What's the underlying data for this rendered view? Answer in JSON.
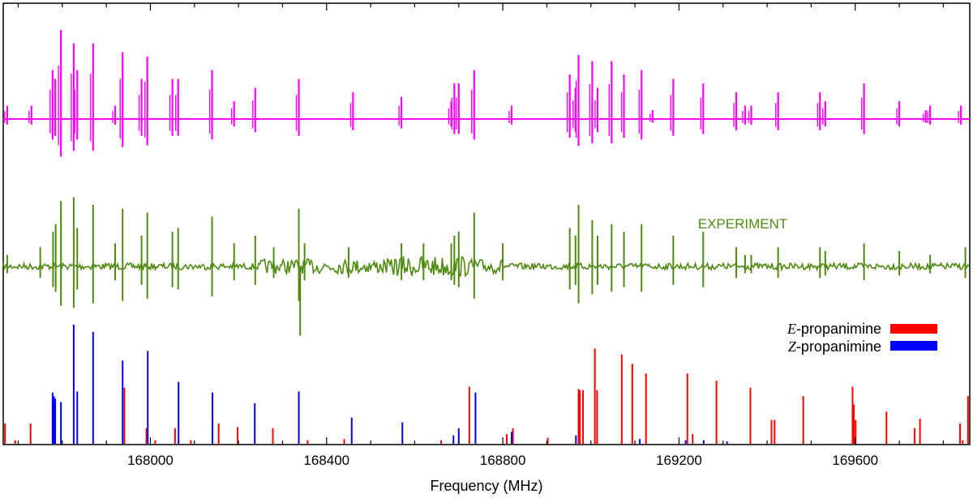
{
  "chart_data": {
    "type": "line",
    "xlabel": "Frequency (MHz)",
    "xlim": [
      167666,
      169860
    ],
    "xticks": [
      168000,
      168400,
      168800,
      169200,
      169600
    ],
    "xtick_labels": [
      "168000",
      "168400",
      "168800",
      "169200",
      "169600"
    ],
    "grid": false,
    "annotations": [
      {
        "text": "EXPERIMENT",
        "color": "#4f8a10"
      }
    ],
    "legend": {
      "placement": "lower-right",
      "entries": [
        {
          "italic": "E",
          "text": "-propanimine",
          "color": "#ff0000"
        },
        {
          "italic": "Z",
          "text": "-propanimine",
          "color": "#0000ff"
        }
      ]
    },
    "series": [
      {
        "role": "simulated-spectrum",
        "color": "#ff00ff",
        "lines": [
          {
            "x": 167675,
            "a": 0.15
          },
          {
            "x": 167730,
            "a": 0.15
          },
          {
            "x": 167778,
            "a": 0.55
          },
          {
            "x": 167784,
            "a": 0.45
          },
          {
            "x": 167797,
            "a": 1.0
          },
          {
            "x": 167826,
            "a": 0.85
          },
          {
            "x": 167834,
            "a": 0.55
          },
          {
            "x": 167870,
            "a": 0.85
          },
          {
            "x": 167920,
            "a": 0.15
          },
          {
            "x": 167937,
            "a": 0.75
          },
          {
            "x": 167980,
            "a": 0.45
          },
          {
            "x": 167993,
            "a": 0.7
          },
          {
            "x": 168050,
            "a": 0.45
          },
          {
            "x": 168063,
            "a": 0.45
          },
          {
            "x": 168140,
            "a": 0.55
          },
          {
            "x": 168190,
            "a": 0.2
          },
          {
            "x": 168238,
            "a": 0.35
          },
          {
            "x": 168337,
            "a": 0.45
          },
          {
            "x": 168460,
            "a": 0.3
          },
          {
            "x": 168570,
            "a": 0.25
          },
          {
            "x": 168683,
            "a": 0.2
          },
          {
            "x": 168690,
            "a": 0.4
          },
          {
            "x": 168700,
            "a": 0.4
          },
          {
            "x": 168735,
            "a": 0.55
          },
          {
            "x": 168820,
            "a": 0.15
          },
          {
            "x": 168952,
            "a": 0.5
          },
          {
            "x": 168965,
            "a": 0.35
          },
          {
            "x": 168972,
            "a": 0.72
          },
          {
            "x": 169003,
            "a": 0.65
          },
          {
            "x": 169015,
            "a": 0.35
          },
          {
            "x": 169047,
            "a": 0.65
          },
          {
            "x": 169075,
            "a": 0.5
          },
          {
            "x": 169115,
            "a": 0.55
          },
          {
            "x": 169140,
            "a": 0.1
          },
          {
            "x": 169187,
            "a": 0.45
          },
          {
            "x": 169255,
            "a": 0.4
          },
          {
            "x": 169330,
            "a": 0.3
          },
          {
            "x": 169350,
            "a": 0.15
          },
          {
            "x": 169364,
            "a": 0.15
          },
          {
            "x": 169425,
            "a": 0.3
          },
          {
            "x": 169520,
            "a": 0.3
          },
          {
            "x": 169532,
            "a": 0.2
          },
          {
            "x": 169620,
            "a": 0.4
          },
          {
            "x": 169700,
            "a": 0.2
          },
          {
            "x": 169760,
            "a": 0.1
          },
          {
            "x": 169770,
            "a": 0.15
          },
          {
            "x": 169840,
            "a": 0.15
          }
        ]
      },
      {
        "role": "experiment",
        "color": "#4f8a10",
        "lines": [
          {
            "x": 167675,
            "a": 0.15
          },
          {
            "x": 167750,
            "a": 0.25
          },
          {
            "x": 167779,
            "a": 0.45
          },
          {
            "x": 167785,
            "a": 0.55
          },
          {
            "x": 167797,
            "a": 0.85
          },
          {
            "x": 167826,
            "a": 0.9
          },
          {
            "x": 167834,
            "a": 0.5
          },
          {
            "x": 167870,
            "a": 0.8
          },
          {
            "x": 167920,
            "a": 0.3
          },
          {
            "x": 167937,
            "a": 0.75
          },
          {
            "x": 167980,
            "a": 0.4
          },
          {
            "x": 167993,
            "a": 0.7
          },
          {
            "x": 168050,
            "a": 0.45
          },
          {
            "x": 168063,
            "a": 0.5
          },
          {
            "x": 168140,
            "a": 0.65
          },
          {
            "x": 168190,
            "a": 0.3
          },
          {
            "x": 168238,
            "a": 0.4
          },
          {
            "x": 168280,
            "a": 0.25
          },
          {
            "x": 168337,
            "a": 0.75
          },
          {
            "x": 168350,
            "a": 0.3
          },
          {
            "x": 168450,
            "a": 0.25
          },
          {
            "x": 168570,
            "a": 0.3
          },
          {
            "x": 168620,
            "a": 0.3
          },
          {
            "x": 168683,
            "a": 0.3
          },
          {
            "x": 168690,
            "a": 0.4
          },
          {
            "x": 168700,
            "a": 0.45
          },
          {
            "x": 168735,
            "a": 0.7
          },
          {
            "x": 168800,
            "a": 0.3
          },
          {
            "x": 168952,
            "a": 0.5
          },
          {
            "x": 168965,
            "a": 0.4
          },
          {
            "x": 168972,
            "a": 0.8
          },
          {
            "x": 169003,
            "a": 0.6
          },
          {
            "x": 169015,
            "a": 0.4
          },
          {
            "x": 169047,
            "a": 0.55
          },
          {
            "x": 169075,
            "a": 0.45
          },
          {
            "x": 169115,
            "a": 0.55
          },
          {
            "x": 169187,
            "a": 0.4
          },
          {
            "x": 169255,
            "a": 0.45
          },
          {
            "x": 169330,
            "a": 0.25
          },
          {
            "x": 169350,
            "a": 0.15
          },
          {
            "x": 169364,
            "a": 0.15
          },
          {
            "x": 169425,
            "a": 0.25
          },
          {
            "x": 169520,
            "a": 0.25
          },
          {
            "x": 169532,
            "a": 0.2
          },
          {
            "x": 169620,
            "a": 0.3
          },
          {
            "x": 169700,
            "a": 0.2
          },
          {
            "x": 169770,
            "a": 0.15
          },
          {
            "x": 169850,
            "a": 0.25
          }
        ],
        "negative_spike": {
          "x": 168340,
          "a": 0.75
        }
      },
      {
        "name": "E-propanimine",
        "color": "#ff0000",
        "x": [
          167670,
          167693,
          167728,
          167941,
          167991,
          168011,
          168056,
          168092,
          168155,
          168198,
          168278,
          168357,
          168440,
          168660,
          168724,
          168809,
          168823,
          168902,
          168972,
          168975,
          168982,
          169009,
          169014,
          169070,
          169094,
          169125,
          169219,
          169231,
          169285,
          169362,
          169410,
          169417,
          169482,
          169594,
          169597,
          169601,
          169671,
          169735,
          169747,
          169838,
          169844,
          169856
        ],
        "y": [
          0.17,
          0.03,
          0.17,
          0.47,
          0.13,
          0.03,
          0.13,
          0.03,
          0.17,
          0.14,
          0.13,
          0.03,
          0.04,
          0.03,
          0.48,
          0.08,
          0.13,
          0.05,
          0.46,
          0.45,
          0.45,
          0.8,
          0.45,
          0.75,
          0.67,
          0.59,
          0.59,
          0.08,
          0.53,
          0.47,
          0.2,
          0.2,
          0.4,
          0.48,
          0.33,
          0.2,
          0.27,
          0.13,
          0.21,
          0.17,
          0.03,
          0.4
        ]
      },
      {
        "name": "Z-propanimine",
        "color": "#0000ff",
        "x": [
          167778,
          167781,
          167784,
          167797,
          167826,
          167834,
          167870,
          167937,
          167994,
          168064,
          168141,
          168237,
          168337,
          168457,
          168572,
          168688,
          168700,
          168738,
          168820,
          168966,
          169111,
          169215,
          169256,
          169309
        ],
        "y": [
          0.43,
          0.4,
          0.38,
          0.35,
          1.0,
          0.44,
          0.94,
          0.7,
          0.78,
          0.52,
          0.43,
          0.34,
          0.44,
          0.22,
          0.18,
          0.07,
          0.13,
          0.43,
          0.1,
          0.07,
          0.04,
          0.03,
          0.03,
          0.02
        ]
      }
    ]
  }
}
